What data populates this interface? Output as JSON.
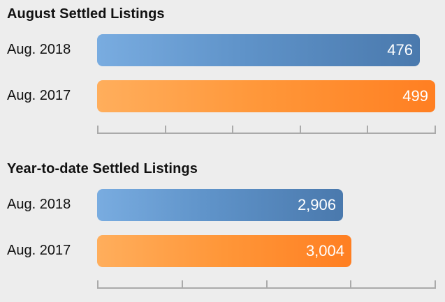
{
  "colors": {
    "series_2018": "#5f93c9",
    "series_2017": "#ff9638",
    "background": "#ededed",
    "axis": "#aaaaaa"
  },
  "chart_data": [
    {
      "type": "bar",
      "orientation": "horizontal",
      "title": "August Settled Listings",
      "categories": [
        "Aug. 2018",
        "Aug. 2017"
      ],
      "values": [
        476,
        499
      ],
      "value_labels": [
        "476",
        "499"
      ],
      "xlim": [
        0,
        500
      ],
      "axis_ticks": 6,
      "grid": false,
      "legend": "none"
    },
    {
      "type": "bar",
      "orientation": "horizontal",
      "title": "Year-to-date Settled Listings",
      "categories": [
        "Aug. 2018",
        "Aug. 2017"
      ],
      "values": [
        2906,
        3004
      ],
      "value_labels": [
        "2,906",
        "3,004"
      ],
      "xlim": [
        0,
        4000
      ],
      "axis_ticks": 5,
      "grid": false,
      "legend": "none"
    }
  ]
}
